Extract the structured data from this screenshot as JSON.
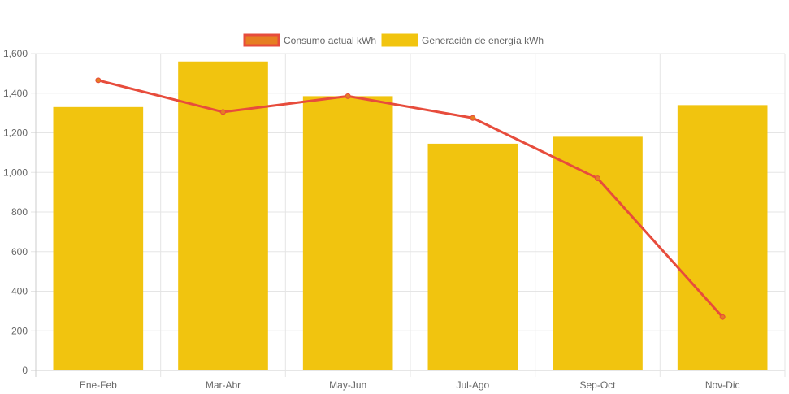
{
  "chart_data": {
    "type": "bar",
    "categories": [
      "Ene-Feb",
      "Mar-Abr",
      "May-Jun",
      "Jul-Ago",
      "Sep-Oct",
      "Nov-Dic"
    ],
    "series": [
      {
        "name": "Consumo actual kWh",
        "type": "line",
        "values": [
          1465,
          1305,
          1385,
          1275,
          970,
          270
        ],
        "color": "#E74C3C",
        "legend_fill": "#E67E22"
      },
      {
        "name": "Generación de energía kWh",
        "type": "bar",
        "values": [
          1330,
          1560,
          1385,
          1145,
          1180,
          1340
        ],
        "color": "#F1C40F"
      }
    ],
    "ylim": [
      0,
      1600
    ],
    "yticks": [
      0,
      200,
      400,
      600,
      800,
      1000,
      1200,
      1400,
      1600
    ],
    "ytick_labels": [
      "0",
      "200",
      "400",
      "600",
      "800",
      "1,000",
      "1,200",
      "1,400",
      "1,600"
    ],
    "grid": true,
    "legend_position": "top-center",
    "colors": {
      "grid": "#e5e5e5",
      "axis": "#cccccc",
      "tick_text": "#666666"
    }
  }
}
